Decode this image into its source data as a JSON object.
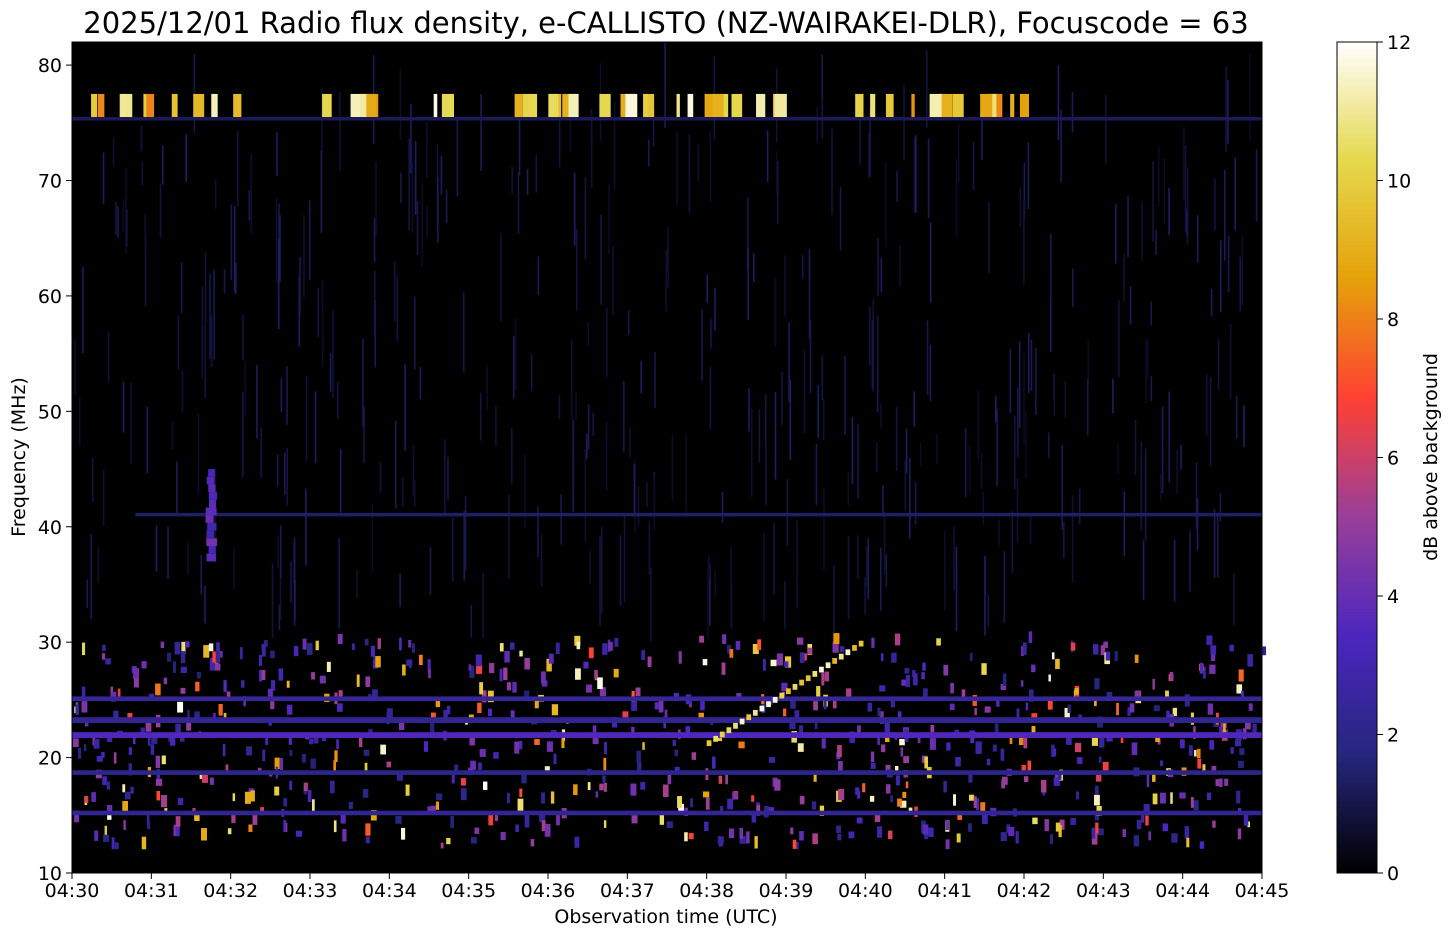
{
  "chart_data": {
    "type": "heatmap",
    "title": "2025/12/01 Radio flux density, e-CALLISTO (NZ-WAIRAKEI-DLR), Focuscode = 63",
    "xlabel": "Observation time (UTC)",
    "ylabel": "Frequency (MHz)",
    "x_ticks": [
      "04:30",
      "04:31",
      "04:32",
      "04:33",
      "04:34",
      "04:35",
      "04:36",
      "04:37",
      "04:38",
      "04:39",
      "04:40",
      "04:41",
      "04:42",
      "04:43",
      "04:44",
      "04:45"
    ],
    "xlim": [
      "04:30",
      "04:45"
    ],
    "y_ticks": [
      10,
      20,
      30,
      40,
      50,
      60,
      70,
      80
    ],
    "ylim": [
      10,
      82
    ],
    "colorbar": {
      "label": "dB above background",
      "ticks": [
        0,
        2,
        4,
        6,
        8,
        10,
        12
      ],
      "range": [
        0,
        12
      ],
      "colormap": "CMRmap",
      "colors": [
        "#000000",
        "#26267f",
        "#4c26bf",
        "#993f99",
        "#ff4033",
        "#e5a10a",
        "#e5d84c",
        "#ffffff"
      ]
    },
    "grid": false,
    "features": {
      "rfi_band_mhz": [
        75.5,
        77.5
      ],
      "interference_bands_mhz": [
        [
          12,
          30
        ]
      ],
      "faint_burst_mhz": [
        37,
        45
      ],
      "faint_burst_time": "04:31:45",
      "drift_feature_time": [
        "04:38",
        "04:40"
      ],
      "drift_feature_mhz": [
        21,
        30
      ]
    }
  }
}
